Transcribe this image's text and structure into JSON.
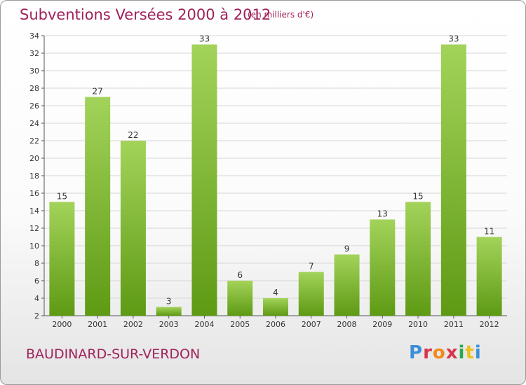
{
  "title": "Subventions Versées 2000 à 2012",
  "unit_note": "(en milliers d'€)",
  "commune": "BAUDINARD-SUR-VERDON",
  "logo_text": "Proxiti",
  "colors": {
    "title": "#a0215a",
    "bar_light": "#a3d35a",
    "bar_dark": "#5e9a14",
    "grid": "#d6d6d6"
  },
  "chart_data": {
    "type": "bar",
    "title": "Subventions Versées 2000 à 2012",
    "categories": [
      "2000",
      "2001",
      "2002",
      "2003",
      "2004",
      "2005",
      "2006",
      "2007",
      "2008",
      "2009",
      "2010",
      "2011",
      "2012"
    ],
    "values": [
      15,
      27,
      22,
      3,
      33,
      6,
      4,
      7,
      9,
      13,
      15,
      33,
      11
    ],
    "ylim": [
      2,
      34
    ],
    "yticks": [
      2,
      4,
      6,
      8,
      10,
      12,
      14,
      16,
      18,
      20,
      22,
      24,
      26,
      28,
      30,
      32,
      34
    ],
    "grid": true,
    "legend": "none"
  }
}
